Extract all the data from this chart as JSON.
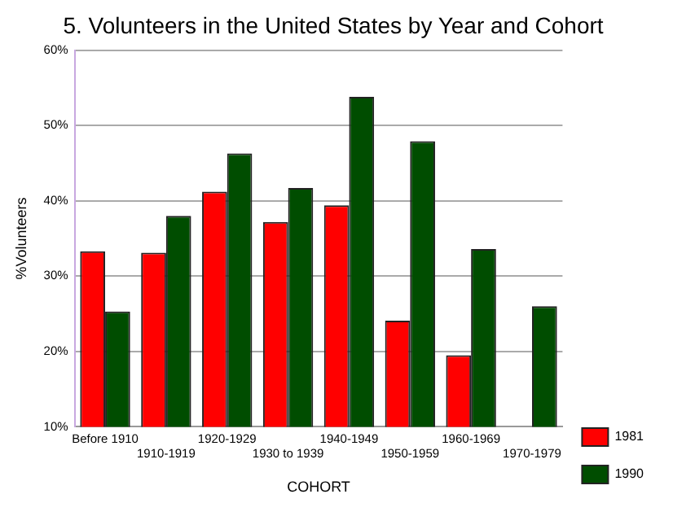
{
  "chart_data": {
    "type": "bar",
    "title": "5. Volunteers in the United States by Year and Cohort",
    "xlabel": "COHORT",
    "ylabel": "%Volunteers",
    "categories": [
      "Before 1910",
      "1910-1919",
      "1920-1929",
      "1930 to 1939",
      "1940-1949",
      "1950-1959",
      "1960-1969",
      "1970-1979"
    ],
    "series": [
      {
        "name": "1981",
        "color": "#ff0000",
        "values": [
          33.3,
          33.1,
          41.2,
          37.2,
          39.4,
          24.1,
          19.5,
          null
        ]
      },
      {
        "name": "1990",
        "color": "#004d00",
        "values": [
          25.3,
          38.0,
          46.3,
          41.7,
          53.8,
          47.9,
          33.6,
          26.0
        ]
      }
    ],
    "ylim": [
      10,
      60
    ],
    "yticks": [
      {
        "value": 10,
        "label": "10%"
      },
      {
        "value": 20,
        "label": "20%"
      },
      {
        "value": 30,
        "label": "30%"
      },
      {
        "value": 40,
        "label": "40%"
      },
      {
        "value": 50,
        "label": "50%"
      },
      {
        "value": 60,
        "label": "60%"
      }
    ],
    "grid": "y",
    "legend": "bottom right"
  }
}
